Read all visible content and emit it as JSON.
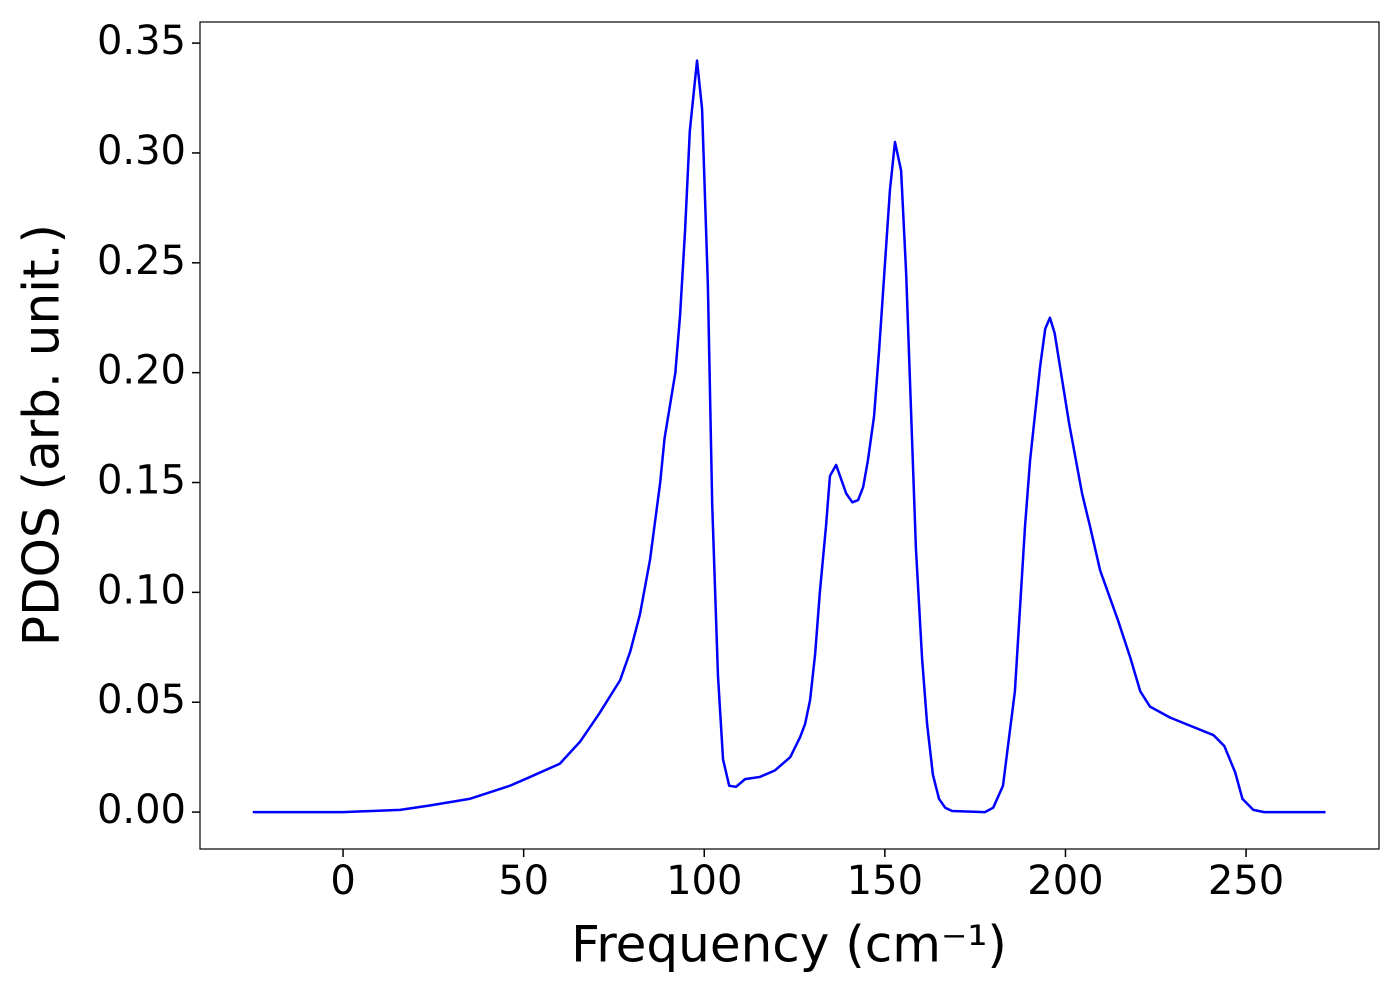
{
  "chart_data": {
    "type": "line",
    "xlabel": "Frequency (cm⁻¹)",
    "ylabel": "PDOS (arb. unit.)",
    "x": [
      -25,
      0,
      5,
      15.8,
      24,
      35,
      46.2,
      51.8,
      60,
      65.6,
      71,
      76.7,
      79.5,
      82.2,
      85,
      87.8,
      89,
      92,
      93.3,
      94.7,
      96,
      98,
      99.4,
      101,
      102.2,
      103.8,
      105.2,
      106.9,
      108.8,
      111.3,
      115.4,
      119.6,
      123.8,
      126.5,
      127.9,
      129.3,
      130.7,
      132,
      133.7,
      134.8,
      136.5,
      139.3,
      141,
      142.6,
      144,
      145.3,
      147,
      148.4,
      151.4,
      152.8,
      154.5,
      155.9,
      158.6,
      160.3,
      161.7,
      163.3,
      165,
      166.7,
      168.6,
      177.7,
      180,
      182.7,
      186,
      188.8,
      190.2,
      193,
      194.4,
      195.7,
      197,
      201,
      204.6,
      206.8,
      209.6,
      214.6,
      218,
      220.7,
      223.4,
      229,
      241,
      244,
      247,
      249,
      252,
      255,
      272
    ],
    "series": [
      {
        "name": "PDOS",
        "color": "#0000ff",
        "values": [
          0,
          0,
          0.0003,
          0.001,
          0.003,
          0.006,
          0.012,
          0.016,
          0.022,
          0.032,
          0.045,
          0.06,
          0.073,
          0.09,
          0.115,
          0.15,
          0.17,
          0.2,
          0.226,
          0.265,
          0.31,
          0.342,
          0.32,
          0.24,
          0.14,
          0.062,
          0.024,
          0.012,
          0.0115,
          0.015,
          0.016,
          0.019,
          0.025,
          0.034,
          0.04,
          0.051,
          0.072,
          0.1,
          0.13,
          0.153,
          0.158,
          0.145,
          0.141,
          0.142,
          0.148,
          0.16,
          0.18,
          0.21,
          0.283,
          0.305,
          0.292,
          0.245,
          0.12,
          0.07,
          0.04,
          0.017,
          0.006,
          0.002,
          0.0005,
          0,
          0.002,
          0.012,
          0.055,
          0.13,
          0.16,
          0.203,
          0.22,
          0.225,
          0.218,
          0.177,
          0.145,
          0.13,
          0.11,
          0.087,
          0.07,
          0.055,
          0.048,
          0.043,
          0.035,
          0.03,
          0.018,
          0.006,
          0.001,
          0,
          0
        ]
      }
    ],
    "xlim": [
      -39.6,
      286.8
    ],
    "ylim": [
      -0.0168,
      0.3596
    ],
    "xticks": [
      0,
      50,
      100,
      150,
      200,
      250
    ],
    "yticks": [
      {
        "value": 0,
        "label": "0.00"
      },
      {
        "value": 0.05,
        "label": "0.05"
      },
      {
        "value": 0.1,
        "label": "0.10"
      },
      {
        "value": 0.15,
        "label": "0.15"
      },
      {
        "value": 0.2,
        "label": "0.20"
      },
      {
        "value": 0.25,
        "label": "0.25"
      },
      {
        "value": 0.3,
        "label": "0.30"
      },
      {
        "value": 0.35,
        "label": "0.35"
      }
    ],
    "grid": false
  }
}
